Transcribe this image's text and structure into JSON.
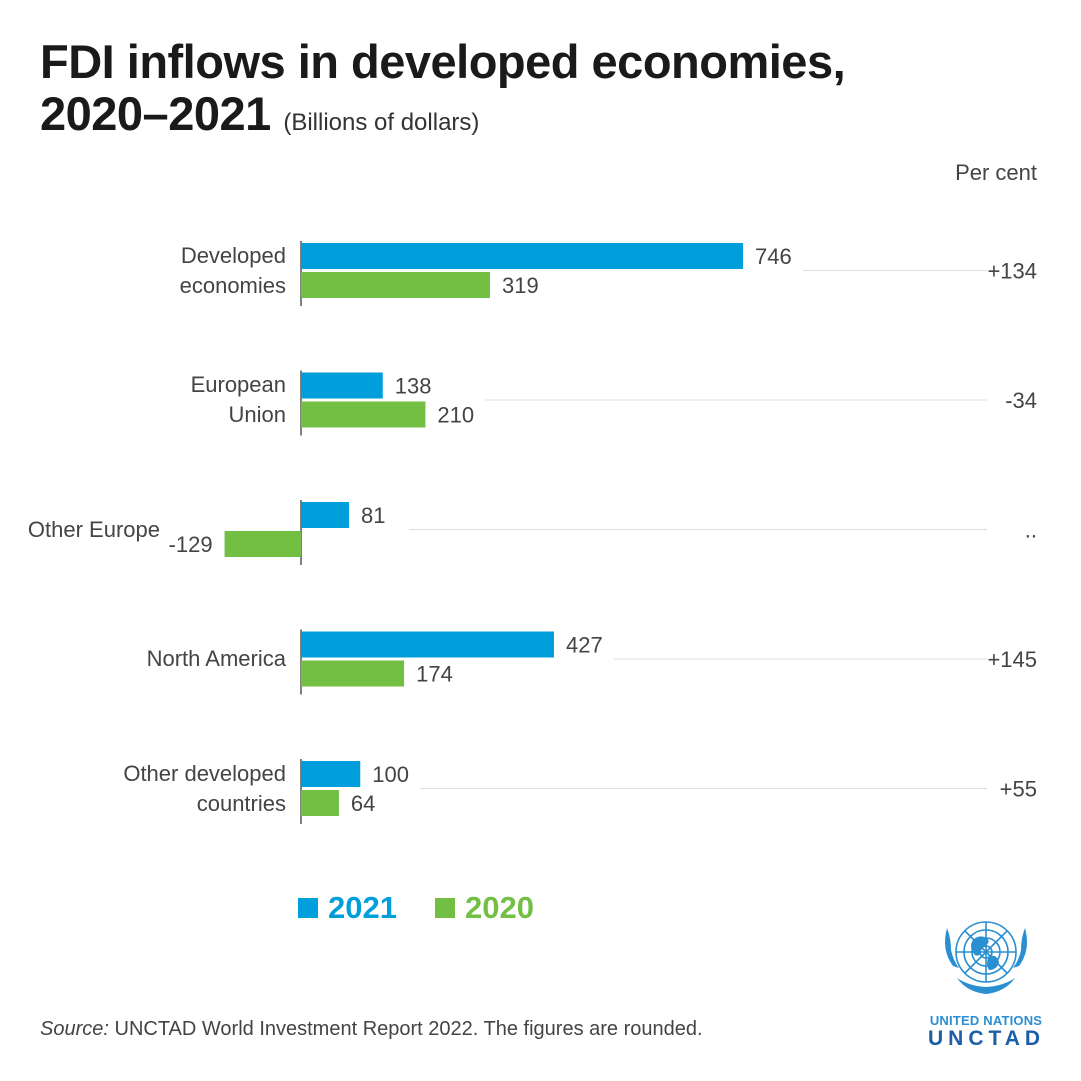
{
  "title_line1": "FDI inflows in developed economies,",
  "title_line2": "2020–2021",
  "unit_note": "(Billions of dollars)",
  "percent_header": "Per cent",
  "colors": {
    "y2021": "#009fdb",
    "y2020": "#72bf44",
    "axis": "#555555",
    "guide": "#dddddd"
  },
  "chart_data": {
    "type": "bar",
    "orientation": "horizontal",
    "categories": [
      [
        "Developed",
        "economies"
      ],
      [
        "European",
        "Union"
      ],
      [
        "Other Europe"
      ],
      [
        "North America"
      ],
      [
        "Other developed",
        "countries"
      ]
    ],
    "series": [
      {
        "name": "2021",
        "values": [
          746,
          138,
          81,
          427,
          100
        ]
      },
      {
        "name": "2020",
        "values": [
          319,
          210,
          -129,
          174,
          64
        ]
      }
    ],
    "value_labels": {
      "2021": [
        "746",
        "138",
        "81",
        "427",
        "100"
      ],
      "2020": [
        "319",
        "210",
        "-129",
        "174",
        "64"
      ]
    },
    "percent_change": [
      "+134",
      "-34",
      "..",
      "+145",
      "+55"
    ],
    "legend_position": "bottom-left"
  },
  "legend": [
    {
      "label": "2021",
      "color": "#009fdb"
    },
    {
      "label": "2020",
      "color": "#72bf44"
    }
  ],
  "source": {
    "label": "Source:",
    "text": " UNCTAD World Investment Report 2022. The figures are rounded."
  },
  "logo": {
    "line1": "UNITED NATIONS",
    "line2": "UNCTAD",
    "icon": "un-emblem-icon"
  }
}
